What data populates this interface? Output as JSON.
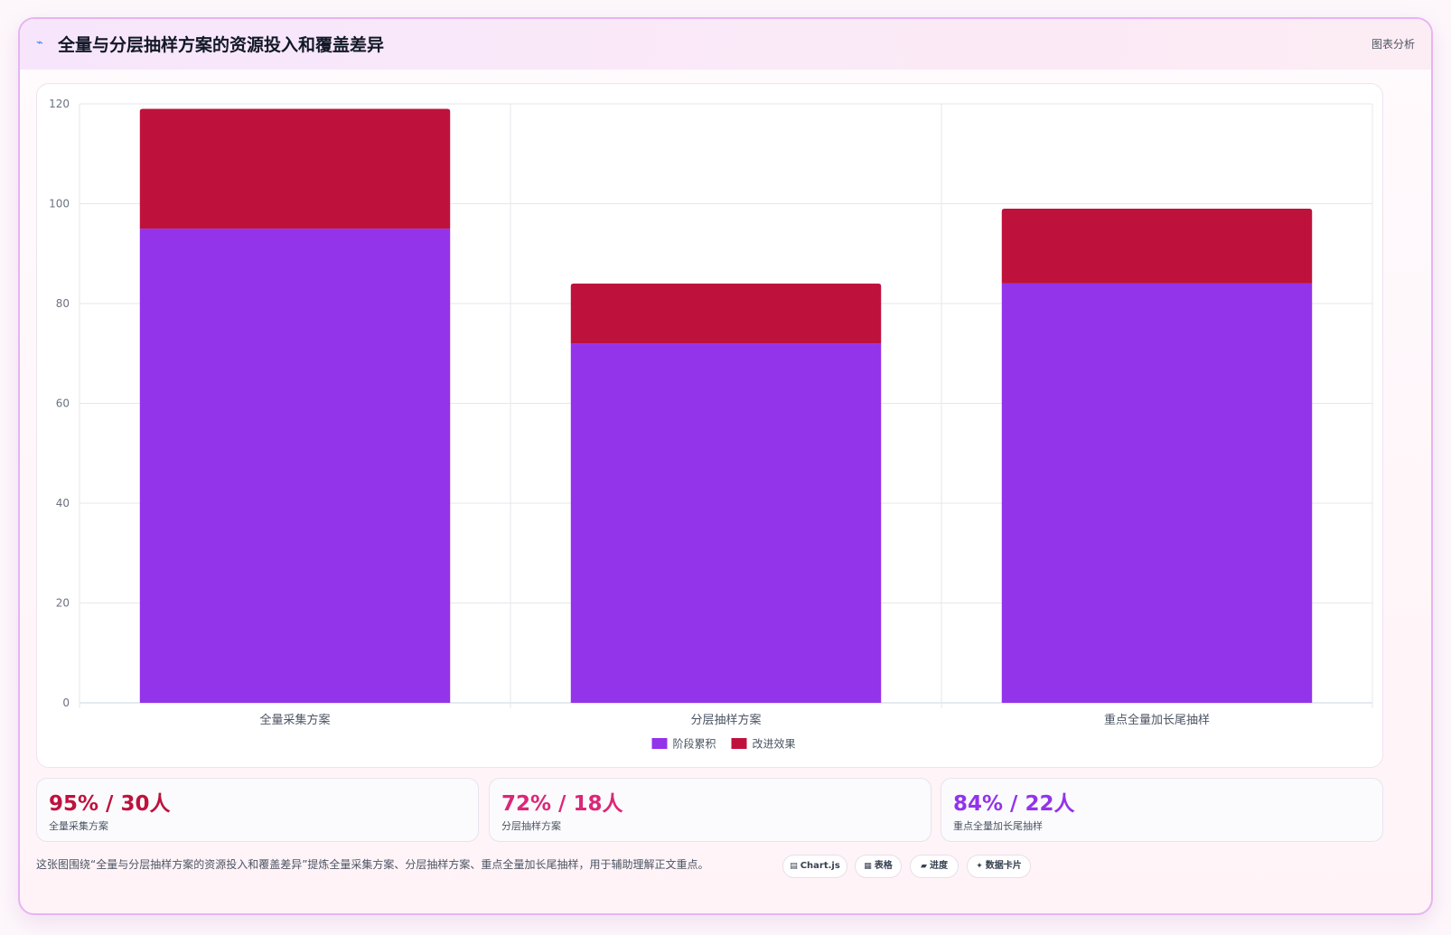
{
  "header": {
    "icon": "chart-line-icon",
    "title": "全量与分层抽样方案的资源投入和覆盖差异",
    "tag": "图表分析"
  },
  "chart_data": {
    "type": "bar",
    "stacked": true,
    "categories": [
      "全量采集方案",
      "分层抽样方案",
      "重点全量加长尾抽样"
    ],
    "series": [
      {
        "name": "阶段累积",
        "values": [
          95,
          72,
          84
        ],
        "color": "#9333ea"
      },
      {
        "name": "改进效果",
        "values": [
          24,
          12,
          15
        ],
        "color": "#be123c"
      }
    ],
    "ylim": [
      0,
      120
    ],
    "yticks": [
      0,
      20,
      40,
      60,
      80,
      100,
      120
    ],
    "grid": true,
    "legend": "bottom",
    "xlabel": "",
    "ylabel": ""
  },
  "stats": [
    {
      "value": "95% / 30人",
      "label": "全量采集方案",
      "color": "#be123c"
    },
    {
      "value": "72% / 18人",
      "label": "分层抽样方案",
      "color": "#db2777"
    },
    {
      "value": "84% / 22人",
      "label": "重点全量加长尾抽样",
      "color": "#9333ea"
    }
  ],
  "footnote": "这张图围绕“全量与分层抽样方案的资源投入和覆盖差异”提炼全量采集方案、分层抽样方案、重点全量加长尾抽样，用于辅助理解正文重点。",
  "pills": [
    {
      "icon": "chart-icon",
      "glyph": "▤",
      "label": "Chart.js"
    },
    {
      "icon": "table-icon",
      "glyph": "▦",
      "label": "表格"
    },
    {
      "icon": "progress-icon",
      "glyph": "▰",
      "label": "进度"
    },
    {
      "icon": "sparkle-icon",
      "glyph": "✦",
      "label": "数据卡片"
    }
  ]
}
